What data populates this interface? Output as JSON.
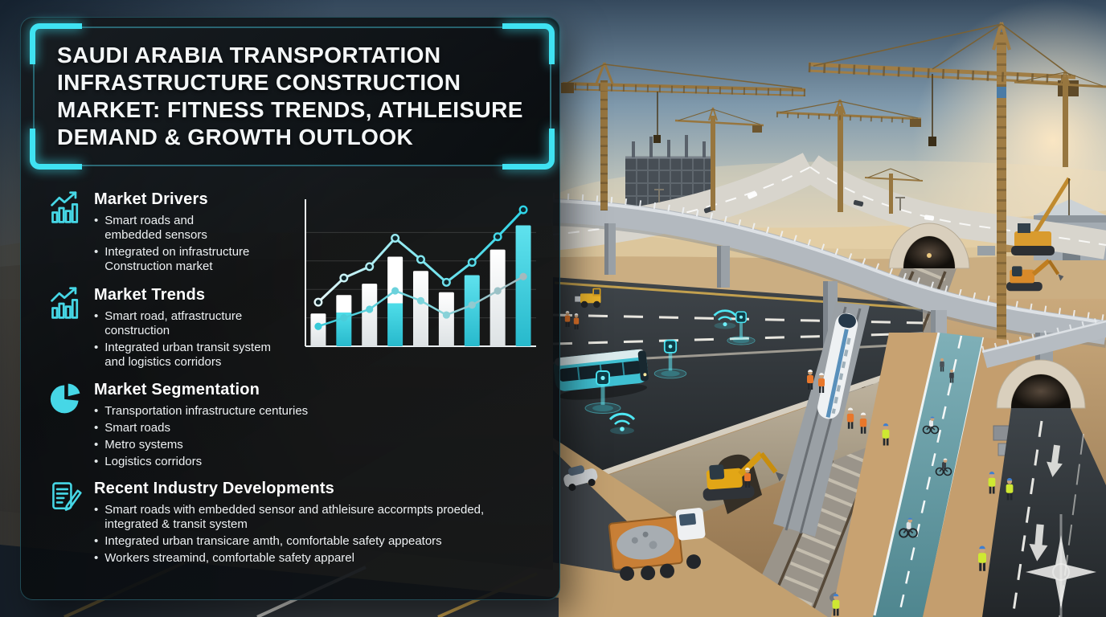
{
  "palette": {
    "accent_cyan": "#3fe2f2",
    "panel_background": "#0b0e12",
    "title_text": "#f4f7f8",
    "body_text": "#eef1f3"
  },
  "panel": {
    "title": "SAUDI ARABIA TRANSPORTATION INFRASTRUCTURE CONSTRUCTION MARKET: FITNESS TRENDS, ATHLEISURE DEMAND & GROWTH OUTLOOK",
    "title_lines": [
      "SAUDI ARABIA TRANSPORTATION",
      "INFRASTRUCTURE CONSTRUCTION",
      "MARKET: FITNESS TRENDS, ATHLEISURE",
      "DEMAND & GROWTH OUTLOOK"
    ],
    "sections": [
      {
        "icon": "growth-chart-icon",
        "heading": "Market Drivers",
        "bullets": [
          "Smart roads and\nembedded sensors",
          "Integrated on infrastructure\nConstruction market"
        ]
      },
      {
        "icon": "growth-chart-icon",
        "heading": "Market Trends",
        "bullets": [
          "Smart road, atfrastructure\nconstruction",
          "Integrated urban transit system\nand logistics corridors"
        ]
      },
      {
        "icon": "pie-chart-icon",
        "heading": "Market Segmentation",
        "bullets": [
          "Transportation infrastructure centuries",
          "Smart roads",
          "Metro systems",
          "Logistics corridors"
        ]
      },
      {
        "icon": "document-edit-icon",
        "heading": "Recent Industry Developments",
        "bullets": [
          "Smart roads with embedded sensor and athleisure accormpts proeded,\nintegrated & transit system",
          "Integrated urban transicare amth, comfortable safety appeators",
          "Workers streamind, comfortable safety apparel"
        ]
      }
    ]
  },
  "chart_data": {
    "type": "bar",
    "categories": [
      "",
      "",
      "",
      "",
      "",
      "",
      "",
      "",
      ""
    ],
    "values": [
      23,
      36,
      44,
      63,
      53,
      38,
      50,
      68,
      85
    ],
    "bar_colors": [
      "white",
      "split",
      "white",
      "split",
      "white",
      "white",
      "cyan",
      "white",
      "cyan"
    ],
    "split_white_fraction": [
      0,
      0.34,
      0,
      0.52,
      0,
      0,
      0,
      0,
      0
    ],
    "line_series": [
      {
        "name": "upper-trend",
        "values": [
          31,
          48,
          56,
          76,
          61,
          45,
          59,
          77,
          96
        ]
      },
      {
        "name": "lower-trend",
        "values": [
          14,
          20,
          26,
          39,
          32,
          22,
          29,
          39,
          49
        ]
      }
    ],
    "title": "",
    "xlabel": "",
    "ylabel": "",
    "ylim": [
      0,
      100
    ],
    "grid": true,
    "legend": false,
    "colors": {
      "cyan": "#3bd6e6",
      "white": "#f6f8f9",
      "gray": "#a7b2b6",
      "marker_fill": "#0e2429",
      "axis": "#e9eef0",
      "grid": "rgba(255,255,255,0.14)"
    }
  },
  "scene": {
    "palette": {
      "sky_top": "#35495d",
      "sky_horizon": "#f0d7b2",
      "sun_glow": "#ffe9c4",
      "desert_sand": "#c9a87a",
      "asphalt": "#2e3337",
      "concrete": "#b2b8be",
      "crane_tan": "#9c7a44",
      "cycle_lane_teal": "#6fa3ad",
      "hologram_cyan": "#49e2f0",
      "hi_vis_orange": "#e8772b",
      "hi_vis_lime": "#cfe832",
      "metro_white": "#eef1f3",
      "tram_teal": "#3fc0d2"
    }
  }
}
